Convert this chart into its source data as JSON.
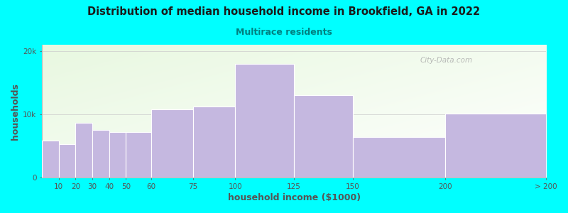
{
  "title": "Distribution of median household income in Brookfield, GA in 2022",
  "subtitle": "Multirace residents",
  "xlabel": "household income ($1000)",
  "ylabel": "households",
  "background_color": "#00FFFF",
  "bar_color": "#C5B8E0",
  "bar_edge_color": "#ffffff",
  "title_color": "#1a1a1a",
  "subtitle_color": "#008080",
  "axis_label_color": "#555555",
  "tick_color": "#555555",
  "bar_data": [
    [
      0,
      10,
      5800
    ],
    [
      10,
      10,
      5300
    ],
    [
      20,
      10,
      8700
    ],
    [
      30,
      10,
      7500
    ],
    [
      40,
      10,
      7200
    ],
    [
      50,
      15,
      7200
    ],
    [
      65,
      25,
      10800
    ],
    [
      90,
      25,
      11200
    ],
    [
      115,
      35,
      18000
    ],
    [
      150,
      35,
      13000
    ],
    [
      185,
      55,
      6400
    ],
    [
      240,
      60,
      10100
    ]
  ],
  "xtick_labels": [
    "10",
    "20",
    "30",
    "40",
    "50",
    "60",
    "75",
    "100",
    "125",
    "150",
    "200",
    "> 200"
  ],
  "ylim": [
    0,
    21000
  ],
  "yticks": [
    0,
    10000,
    20000
  ],
  "ytick_labels": [
    "0",
    "10k",
    "20k"
  ],
  "xlim": [
    0,
    300
  ],
  "watermark_text": "City-Data.com"
}
